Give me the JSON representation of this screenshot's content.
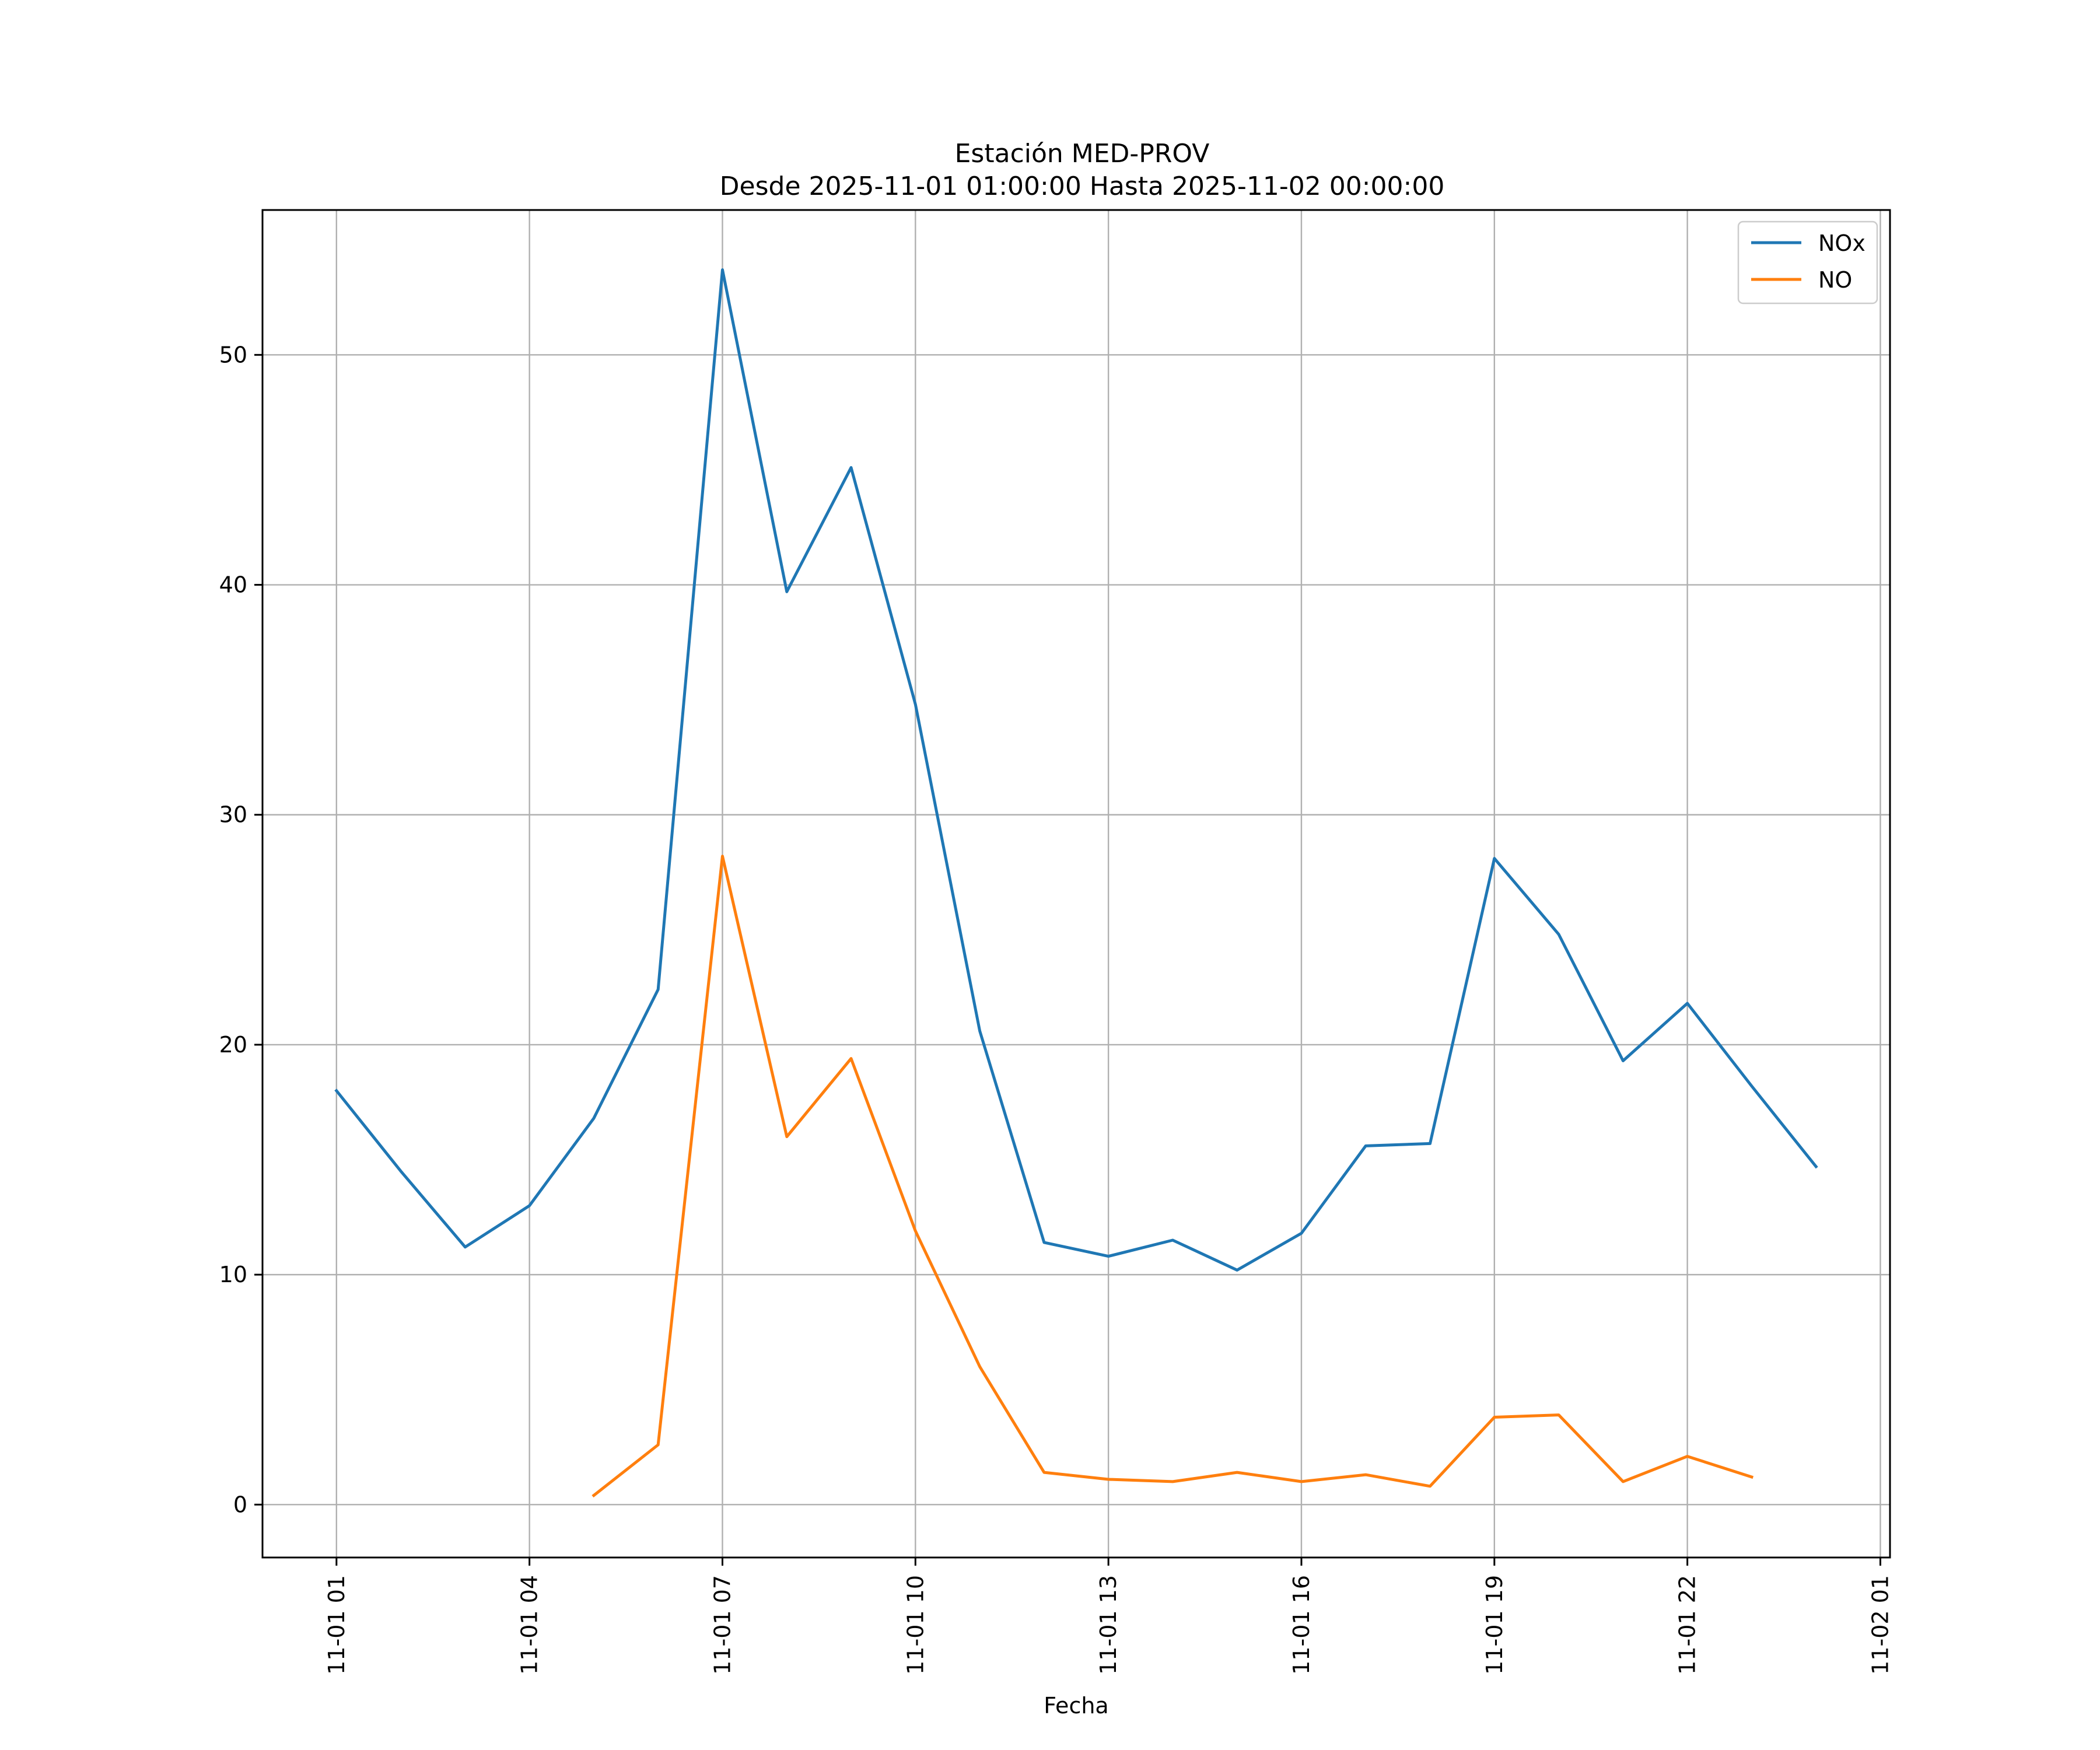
{
  "chart_data": {
    "type": "line",
    "title": "Estación MED-PROV",
    "subtitle": "Desde 2025-11-01 01:00:00 Hasta 2025-11-02 00:00:00",
    "xlabel": "Fecha",
    "ylabel": "",
    "x": [
      "11-01 01",
      "11-01 02",
      "11-01 03",
      "11-01 04",
      "11-01 05",
      "11-01 06",
      "11-01 07",
      "11-01 08",
      "11-01 09",
      "11-01 10",
      "11-01 11",
      "11-01 12",
      "11-01 13",
      "11-01 14",
      "11-01 15",
      "11-01 16",
      "11-01 17",
      "11-01 18",
      "11-01 19",
      "11-01 20",
      "11-01 21",
      "11-01 22",
      "11-01 23",
      "11-02 00"
    ],
    "xticks": [
      "11-01 01",
      "11-01 04",
      "11-01 07",
      "11-01 10",
      "11-01 13",
      "11-01 16",
      "11-01 19",
      "11-01 22",
      "11-02 01"
    ],
    "xlim_hours": [
      -1.15,
      24.15
    ],
    "yticks": [
      0,
      10,
      20,
      30,
      40,
      50
    ],
    "ylim": [
      -2.3,
      56.3
    ],
    "grid": true,
    "legend_position": "top-right",
    "series": [
      {
        "name": "NOx",
        "color": "#1f77b4",
        "values": [
          18.0,
          14.5,
          11.2,
          13.0,
          16.8,
          22.4,
          53.7,
          39.7,
          45.1,
          34.8,
          20.6,
          11.4,
          10.8,
          11.5,
          10.2,
          11.8,
          15.6,
          15.7,
          28.1,
          24.8,
          19.3,
          21.8,
          18.2,
          14.7
        ]
      },
      {
        "name": "NO",
        "color": "#ff7f0e",
        "values": [
          null,
          null,
          null,
          null,
          0.4,
          2.6,
          28.2,
          16.0,
          19.4,
          11.9,
          6.0,
          1.4,
          1.1,
          1.0,
          1.4,
          1.0,
          1.3,
          0.8,
          3.8,
          3.9,
          1.0,
          2.1,
          1.2,
          null
        ]
      }
    ]
  }
}
